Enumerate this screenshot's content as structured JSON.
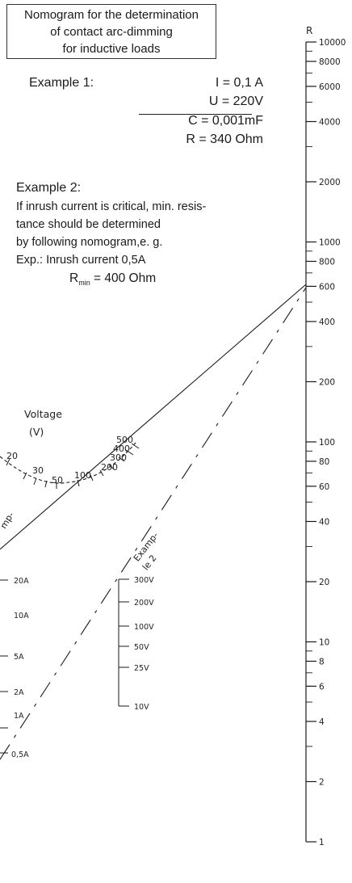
{
  "title": [
    "Nomogram for the determination",
    "of contact arc-dimming",
    "for inductive loads"
  ],
  "example1": {
    "label": "Example 1:",
    "i": "I = 0,1 A",
    "u": "U = 220V",
    "c": "C = 0,001mF",
    "r": "R = 340 Ohm"
  },
  "example2": {
    "label": "Example 2:",
    "lines": [
      "If inrush current is critical, min. resis-",
      "tance should be determined",
      "by following nomogram,e. g.",
      "Exp.: Inrush current 0,5A"
    ],
    "rmin_r": "R",
    "rmin_sub": "min",
    "rmin_value": " = 400 Ohm"
  },
  "r_scale": {
    "axis_label": "R",
    "ticks": [
      {
        "v": 10000,
        "label": "10000"
      },
      {
        "v": 8000,
        "label": "8000"
      },
      {
        "v": 6000,
        "label": "6000"
      },
      {
        "v": 4000,
        "label": "4000"
      },
      {
        "v": 2000,
        "label": "2000"
      },
      {
        "v": 1000,
        "label": "1000"
      },
      {
        "v": 800,
        "label": "800"
      },
      {
        "v": 600,
        "label": "600"
      },
      {
        "v": 400,
        "label": "400"
      },
      {
        "v": 200,
        "label": "200"
      },
      {
        "v": 100,
        "label": "100"
      },
      {
        "v": 80,
        "label": "80"
      },
      {
        "v": 60,
        "label": "60"
      },
      {
        "v": 40,
        "label": "40"
      },
      {
        "v": 20,
        "label": "20"
      },
      {
        "v": 10,
        "label": "10"
      },
      {
        "v": 8,
        "label": "8"
      },
      {
        "v": 6,
        "label": "6"
      },
      {
        "v": 4,
        "label": "4"
      },
      {
        "v": 2,
        "label": "2"
      },
      {
        "v": 1,
        "label": "1"
      }
    ]
  },
  "voltage_arc": {
    "title": [
      "Voltage",
      "(V)"
    ],
    "labels": [
      "20",
      "30",
      "50",
      "100",
      "200",
      "300",
      "400",
      "500"
    ]
  },
  "current_scale": {
    "labels": [
      "20A",
      "10A",
      "5A",
      "2A",
      "1A",
      "0,5A"
    ]
  },
  "voltage_scale": {
    "labels": [
      "300V",
      "200V",
      "100V",
      "50V",
      "25V",
      "10V"
    ]
  },
  "annotations": {
    "example1_fragment": "mp-",
    "example2": [
      "Examp-",
      "le 2"
    ]
  }
}
